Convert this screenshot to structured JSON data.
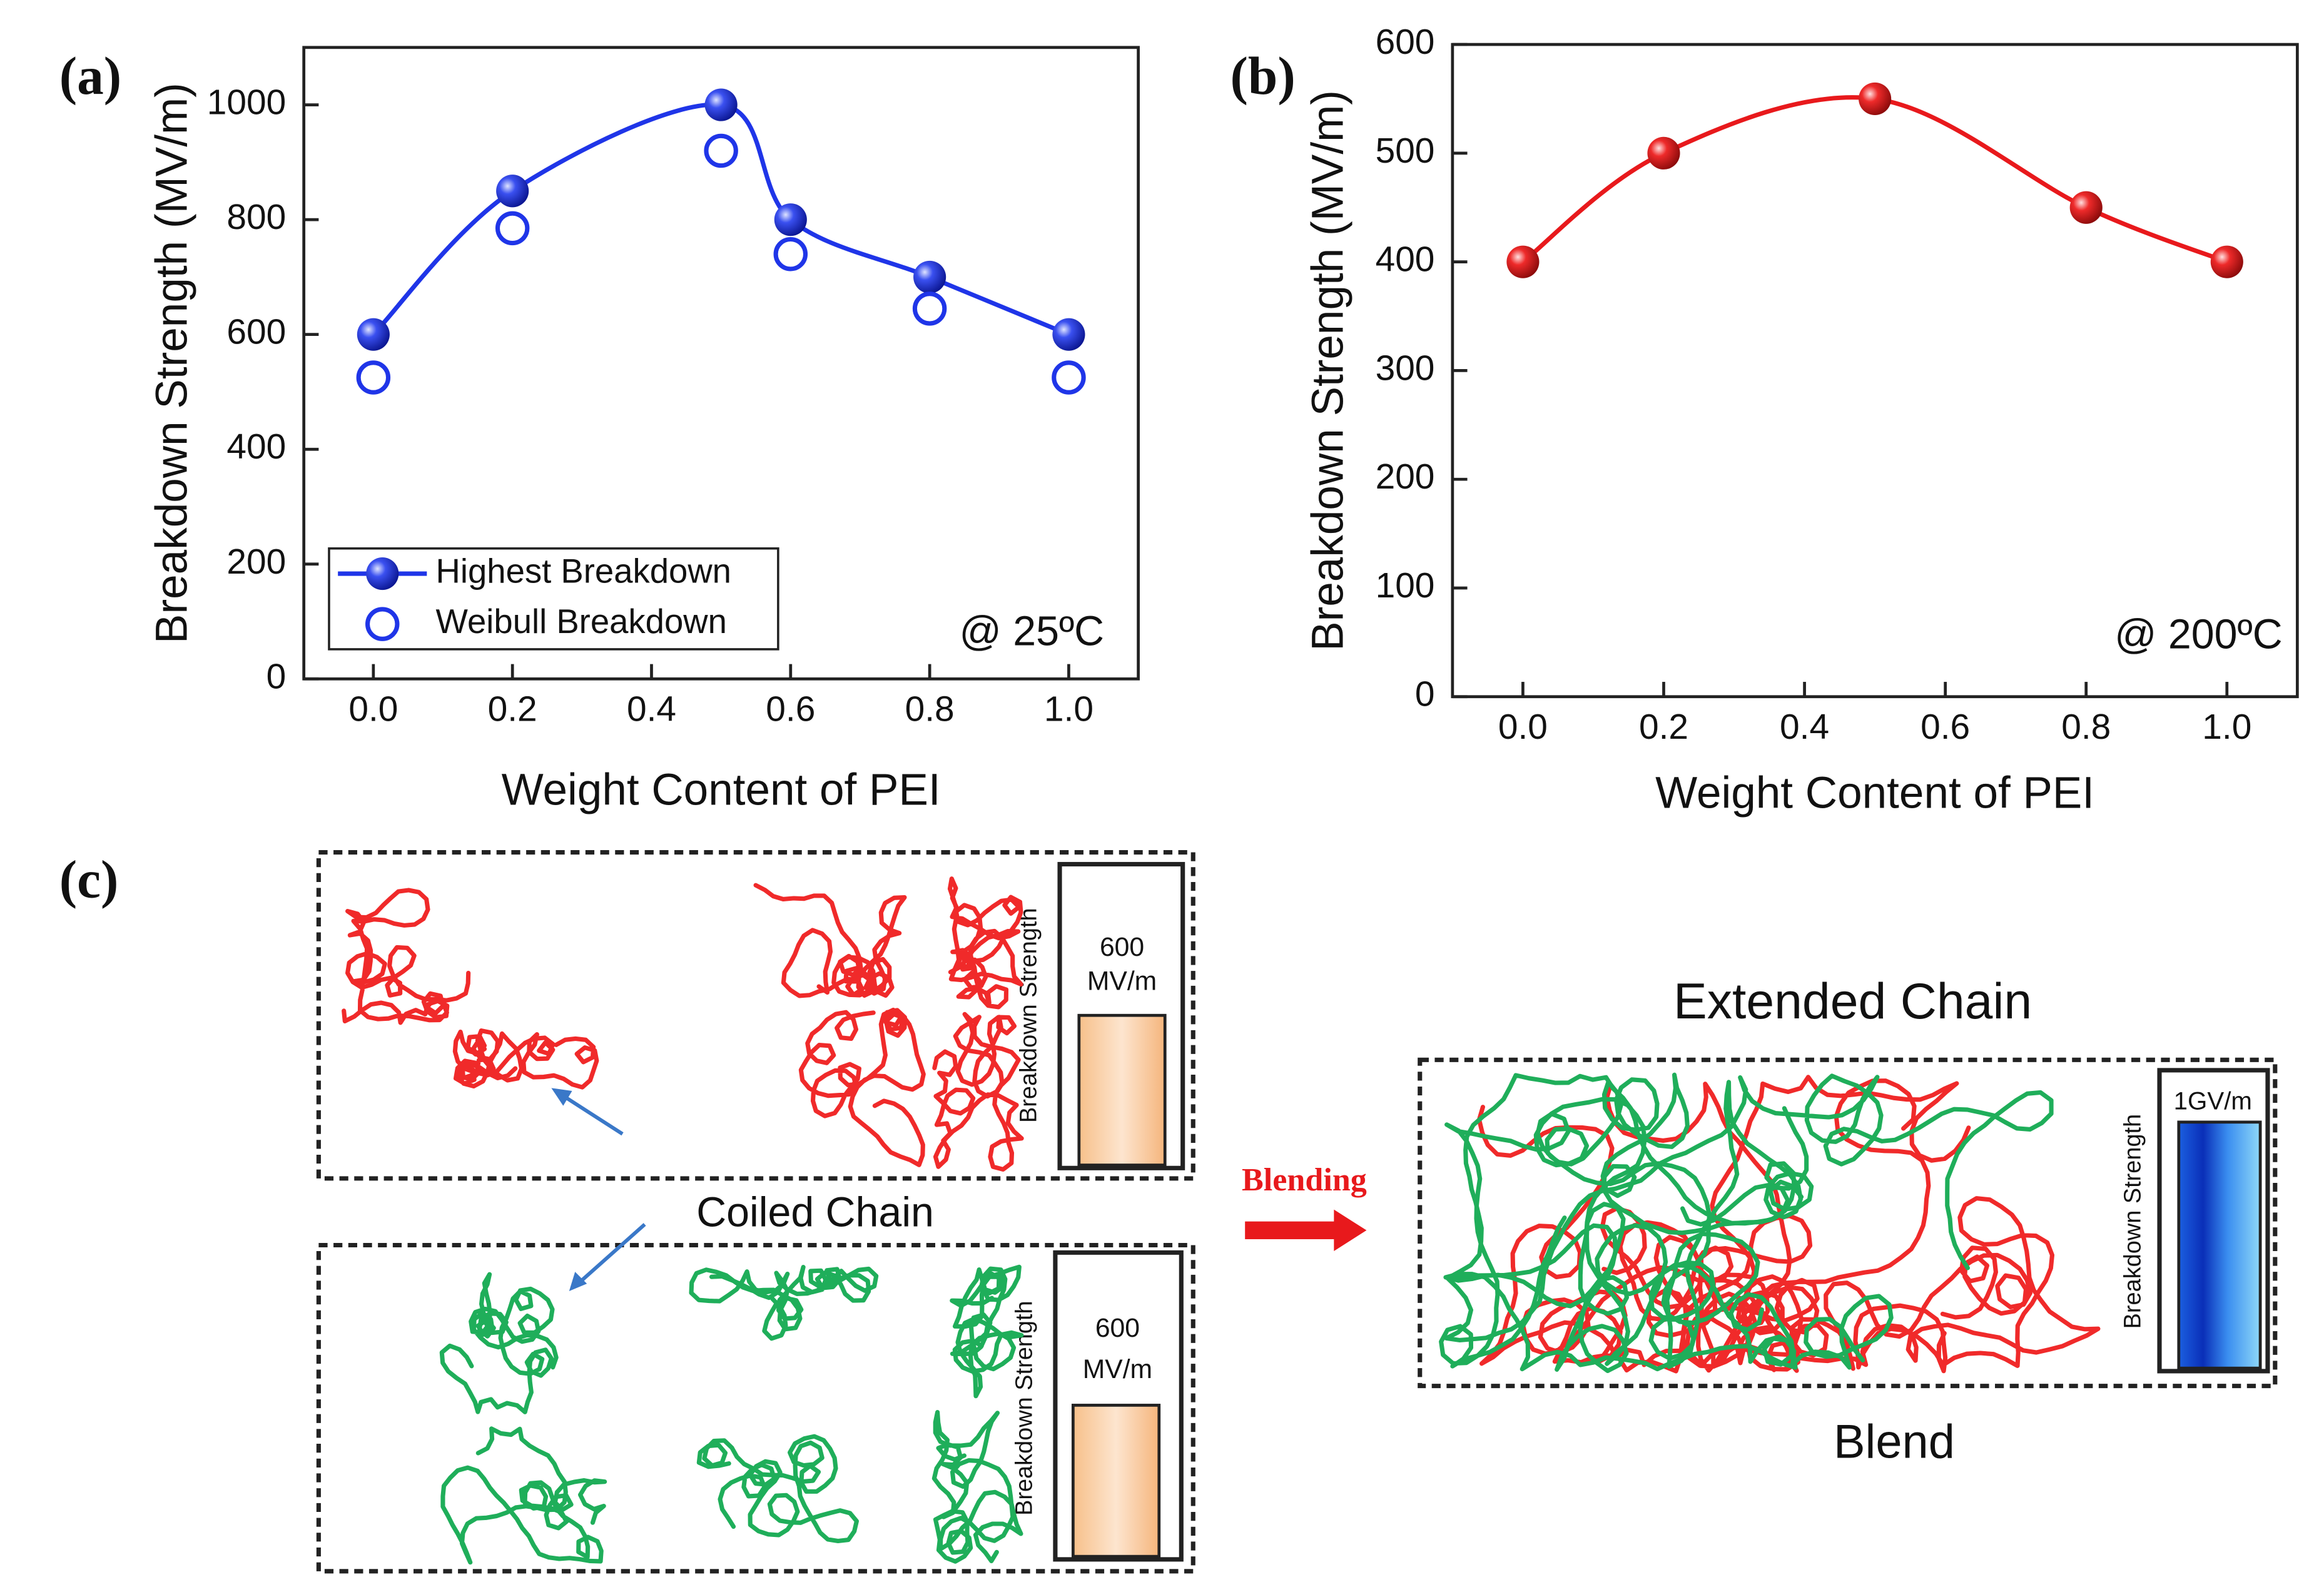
{
  "chart_data": [
    {
      "type": "line",
      "label": "(a)",
      "xlabel": "Weight Content of PEI",
      "ylabel": "Breakdown Strength (MV/m)",
      "annotation": "@ 25ºC",
      "x": [
        0,
        0.2,
        0.5,
        0.6,
        0.8,
        1.0
      ],
      "series": [
        {
          "name": "Highest Breakdown",
          "color": "#1f35e8",
          "values": [
            600,
            850,
            1000,
            800,
            700,
            600
          ],
          "line": true,
          "marker": "filled"
        },
        {
          "name": "Weibull Breakdown",
          "color": "#1f35e8",
          "values": [
            525,
            785,
            920,
            740,
            645,
            525
          ],
          "line": false,
          "marker": "open"
        }
      ],
      "xlim": [
        -0.1,
        1.1
      ],
      "xticks": [
        {
          "value": 0,
          "label": "0.0"
        },
        {
          "value": 0.2,
          "label": "0.2"
        },
        {
          "value": 0.4,
          "label": "0.4"
        },
        {
          "value": 0.6,
          "label": "0.6"
        },
        {
          "value": 0.8,
          "label": "0.8"
        },
        {
          "value": 1,
          "label": "1.0"
        }
      ],
      "ylim": [
        0,
        1100
      ],
      "yticks": [
        0,
        200,
        400,
        600,
        800,
        1000
      ],
      "legend": "lower left"
    },
    {
      "type": "line",
      "label": "(b)",
      "xlabel": "Weight Content of PEI",
      "ylabel": "Breakdown Strength (MV/m)",
      "annotation": "@ 200ºC",
      "x": [
        0,
        0.2,
        0.5,
        0.8,
        1.0
      ],
      "series": [
        {
          "color": "#e8191c",
          "values": [
            400,
            500,
            550,
            450,
            400
          ],
          "line": true,
          "marker": "filled"
        }
      ],
      "xlim": [
        -0.1,
        1.1
      ],
      "xticks": [
        {
          "value": 0,
          "label": "0.0"
        },
        {
          "value": 0.2,
          "label": "0.2"
        },
        {
          "value": 0.4,
          "label": "0.4"
        },
        {
          "value": 0.6,
          "label": "0.6"
        },
        {
          "value": 0.8,
          "label": "0.8"
        },
        {
          "value": 1,
          "label": "1.0"
        }
      ],
      "ylim": [
        0,
        600
      ],
      "yticks": [
        0,
        100,
        200,
        300,
        400,
        500,
        600
      ]
    }
  ],
  "diagram": {
    "label": "(c)",
    "coiled_label": "Coiled Chain",
    "arrow_label": "Blending",
    "extended_label": "Extended Chain",
    "blend_label": "Blend",
    "panels": [
      {
        "strength_label": "Breakdown Strength",
        "strength": [
          "600",
          "MV/m"
        ]
      },
      {
        "strength_label": "Breakdown Strength",
        "strength": [
          "600",
          "MV/m"
        ]
      },
      {
        "strength_label": "Breakdown Strength",
        "strength": [
          "1GV/m"
        ]
      }
    ]
  }
}
